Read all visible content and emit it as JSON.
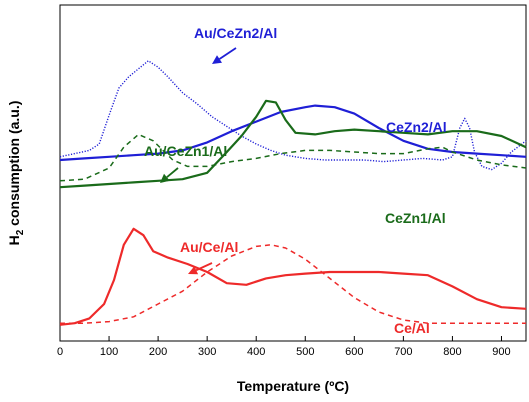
{
  "chart_data": {
    "type": "line",
    "xlabel": "Temperature (ºC)",
    "ylabel_main": "H",
    "ylabel_sub": "2",
    "ylabel_rest": " consumption (a.u.)",
    "xlim": [
      0,
      950
    ],
    "x_ticks": [
      0,
      100,
      200,
      300,
      400,
      500,
      600,
      700,
      800,
      900
    ],
    "grid": false,
    "y_ticks_shown": false,
    "colors": {
      "blue": "#1f1fd6",
      "green": "#1a6b1a",
      "red": "#ee2a2a"
    },
    "series": [
      {
        "name": "Au/CeZn2/Al",
        "color": "blue",
        "style": "dotted",
        "x": [
          0,
          30,
          60,
          80,
          100,
          120,
          140,
          160,
          180,
          200,
          220,
          250,
          280,
          310,
          340,
          370,
          400,
          430,
          460,
          500,
          540,
          580,
          620,
          660,
          700,
          740,
          780,
          800,
          815,
          825,
          835,
          845,
          860,
          880,
          900,
          920,
          950
        ],
        "y": [
          98,
          96,
          94,
          90,
          72,
          55,
          48,
          43,
          38,
          42,
          48,
          58,
          65,
          73,
          79,
          85,
          90,
          94,
          97,
          99,
          100,
          100,
          100,
          101,
          100,
          99,
          100,
          98,
          80,
          74,
          80,
          95,
          104,
          106,
          102,
          95,
          88
        ]
      },
      {
        "name": "CeZn2/Al",
        "color": "blue",
        "style": "solid",
        "x": [
          0,
          50,
          100,
          150,
          200,
          250,
          300,
          350,
          400,
          450,
          500,
          520,
          560,
          600,
          650,
          700,
          750,
          800,
          850,
          900,
          950
        ],
        "y": [
          100,
          99,
          98,
          97,
          96,
          94,
          89,
          82,
          76,
          70,
          67,
          66,
          67,
          71,
          80,
          88,
          93,
          95,
          96,
          97,
          98
        ]
      },
      {
        "name": "Au/CeZn1/Al",
        "color": "green",
        "style": "dashed",
        "x": [
          0,
          50,
          100,
          130,
          160,
          190,
          230,
          260,
          300,
          350,
          400,
          450,
          500,
          550,
          600,
          650,
          700,
          750,
          780,
          800,
          850,
          900,
          950
        ],
        "y": [
          113,
          112,
          105,
          92,
          84,
          88,
          100,
          104,
          104,
          101,
          99,
          96,
          94,
          94,
          95,
          96,
          96,
          93,
          92,
          95,
          100,
          103,
          105
        ]
      },
      {
        "name": "CeZn1/Al",
        "color": "green",
        "style": "solid",
        "x": [
          0,
          50,
          100,
          150,
          200,
          250,
          300,
          340,
          370,
          400,
          420,
          440,
          460,
          480,
          520,
          560,
          600,
          650,
          700,
          750,
          800,
          850,
          900,
          950
        ],
        "y": [
          117,
          116,
          115,
          114,
          113,
          112,
          108,
          95,
          85,
          73,
          63,
          64,
          75,
          83,
          84,
          82,
          81,
          82,
          83,
          84,
          82,
          82,
          85,
          92
        ]
      },
      {
        "name": "Au/Ce/Al",
        "color": "red",
        "style": "solid",
        "x": [
          0,
          30,
          60,
          90,
          110,
          130,
          150,
          170,
          190,
          220,
          260,
          300,
          340,
          380,
          420,
          460,
          500,
          550,
          600,
          650,
          700,
          750,
          800,
          850,
          900,
          950
        ],
        "y": [
          203,
          202,
          199,
          190,
          175,
          153,
          143,
          147,
          157,
          161,
          165,
          170,
          177,
          178,
          174,
          172,
          171,
          170,
          170,
          170,
          171,
          172,
          179,
          187,
          192,
          193
        ]
      },
      {
        "name": "Ce/Al",
        "color": "red",
        "style": "dashed",
        "x": [
          0,
          50,
          100,
          150,
          200,
          250,
          300,
          350,
          400,
          430,
          460,
          500,
          550,
          600,
          650,
          700,
          750,
          800,
          850,
          900,
          950
        ],
        "y": [
          202,
          202,
          201,
          198,
          190,
          182,
          170,
          160,
          154,
          153,
          155,
          162,
          174,
          186,
          195,
          200,
          202,
          202,
          202,
          202,
          202
        ]
      }
    ],
    "annotations": [
      {
        "text": "Au/CeZn2/Al",
        "color": "blue"
      },
      {
        "text": "CeZn2/Al",
        "color": "blue"
      },
      {
        "text": "Au/CeZn1/Al",
        "color": "green"
      },
      {
        "text": "CeZn1/Al",
        "color": "green"
      },
      {
        "text": "Au/Ce/Al",
        "color": "red"
      },
      {
        "text": "Ce/Al",
        "color": "red"
      }
    ]
  }
}
